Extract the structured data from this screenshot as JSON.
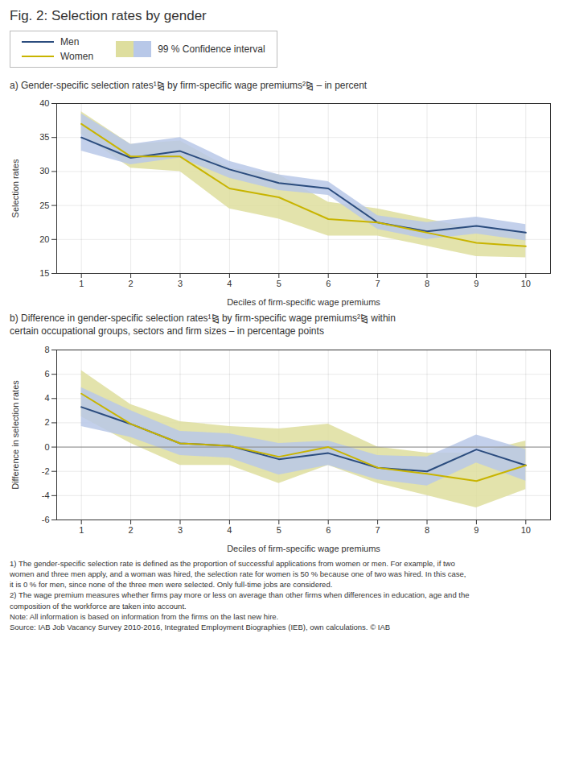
{
  "chart_data": [
    {
      "type": "line",
      "title": "Fig. 2: Selection rates by gender",
      "subtitle": "a) Gender-specific selection rates¹⧎ by firm-specific wage premiums²⧎ – in percent",
      "band_label": "99 % Confidence interval",
      "legend": "top",
      "xlabel": "Deciles of firm-specific wage premiums",
      "ylabel": "Selection rates",
      "x": [
        1,
        2,
        3,
        4,
        5,
        6,
        7,
        8,
        9,
        10
      ],
      "xlim": [
        0.5,
        10.5
      ],
      "xticks": [
        1,
        2,
        3,
        4,
        5,
        6,
        7,
        8,
        9,
        10
      ],
      "ylim": [
        15,
        40
      ],
      "yticks": [
        15,
        20,
        25,
        30,
        35,
        40
      ],
      "grid": true,
      "series": [
        {
          "name": "Men",
          "color": "#2b4c7e",
          "band_color": "#b8c8e8",
          "values": [
            35.0,
            32.0,
            33.0,
            30.3,
            28.3,
            27.5,
            22.5,
            21.2,
            22.0,
            21.0
          ],
          "lower": [
            33.0,
            31.0,
            32.0,
            29.0,
            27.2,
            26.5,
            21.5,
            20.0,
            20.8,
            19.8
          ],
          "upper": [
            38.5,
            34.0,
            35.0,
            31.5,
            29.5,
            28.5,
            23.5,
            22.5,
            23.3,
            22.2
          ]
        },
        {
          "name": "Women",
          "color": "#c8b400",
          "band_color": "#dede9e",
          "values": [
            37.0,
            32.2,
            32.2,
            27.5,
            26.2,
            23.0,
            22.5,
            21.0,
            19.5,
            19.0
          ],
          "lower": [
            35.5,
            30.5,
            30.0,
            24.5,
            23.0,
            20.5,
            20.5,
            19.0,
            17.5,
            17.3
          ],
          "upper": [
            38.8,
            34.0,
            34.5,
            30.5,
            29.5,
            25.5,
            24.5,
            23.0,
            21.5,
            21.0
          ]
        }
      ]
    },
    {
      "type": "line",
      "subtitle": "b) Difference in gender-specific selection rates¹⧎ by firm-specific wage premiums²⧎ within\ncertain occupational groups, sectors and firm sizes – in percentage points",
      "xlabel": "Deciles of firm-specific wage premiums",
      "ylabel": "Difference in selection rates",
      "x": [
        1,
        2,
        3,
        4,
        5,
        6,
        7,
        8,
        9,
        10
      ],
      "xlim": [
        0.5,
        10.5
      ],
      "xticks": [
        1,
        2,
        3,
        4,
        5,
        6,
        7,
        8,
        9,
        10
      ],
      "ylim": [
        -6,
        8
      ],
      "yticks": [
        -6,
        -4,
        -2,
        0,
        2,
        4,
        6,
        8
      ],
      "grid": true,
      "hlines": [
        0
      ],
      "series": [
        {
          "name": "Men",
          "color": "#2b4c7e",
          "band_color": "#b8c8e8",
          "values": [
            3.3,
            1.9,
            0.3,
            0.1,
            -1.0,
            -0.5,
            -1.7,
            -2.0,
            -0.2,
            -1.5
          ],
          "lower": [
            1.7,
            0.8,
            -0.7,
            -0.9,
            -2.3,
            -1.5,
            -2.7,
            -3.2,
            -1.3,
            -2.8
          ],
          "upper": [
            4.9,
            3.0,
            1.3,
            1.1,
            0.3,
            0.5,
            -0.7,
            -0.8,
            1.0,
            -0.2
          ]
        },
        {
          "name": "Women",
          "color": "#c8b400",
          "band_color": "#dede9e",
          "values": [
            4.4,
            1.9,
            0.3,
            0.1,
            -0.8,
            0.0,
            -1.7,
            -2.2,
            -2.8,
            -1.5
          ],
          "lower": [
            2.5,
            0.3,
            -1.5,
            -1.5,
            -3.0,
            -1.5,
            -3.0,
            -4.0,
            -5.0,
            -3.5
          ],
          "upper": [
            6.3,
            3.5,
            2.1,
            1.7,
            1.5,
            1.9,
            0.0,
            -0.5,
            -0.5,
            0.5
          ]
        }
      ],
      "annotations": [
        "1) The gender-specific selection rate is defined as the proportion of successful applications from women or men. For example, if two\nwomen and three men apply, and a woman was hired, the selection rate for women is 50 % because one of two was hired. In this case,\nit is 0 % for men, since none of the three men were selected. Only full-time jobs are considered.",
        "2) The wage premium measures whether firms pay more or less on average than other firms when differences in education, age and the\ncomposition of the workforce are taken into account.",
        "Note: All information is based on information from the firms on the last new hire.",
        "Source: IAB Job Vacancy Survey 2010-2016, Integrated Employment Biographies (IEB), own calculations. © IAB"
      ]
    }
  ]
}
